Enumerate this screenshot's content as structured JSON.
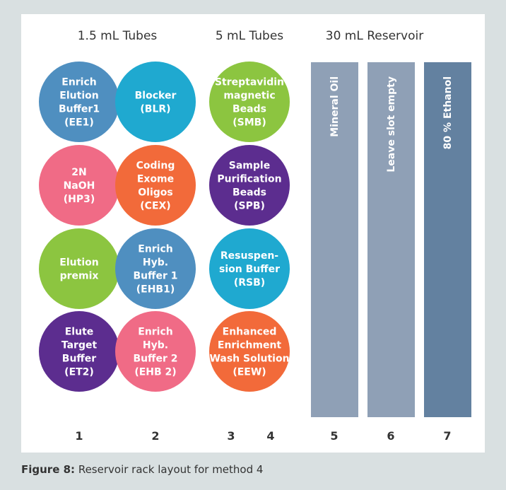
{
  "headers": [
    "1.5 mL Tubes",
    "5 mL Tubes",
    "30 mL Reservoir"
  ],
  "tubes": [
    {
      "lines": [
        "Enrich",
        "Elution",
        "Buffer1",
        "(EE1)"
      ],
      "color": "#4f8fc0"
    },
    {
      "lines": [
        "2N",
        "NaOH",
        "(HP3)"
      ],
      "color": "#f06b86"
    },
    {
      "lines": [
        "Elution",
        "premix"
      ],
      "color": "#8cc540"
    },
    {
      "lines": [
        "Elute",
        "Target",
        "Buffer",
        "(ET2)"
      ],
      "color": "#5c2d8f"
    },
    {
      "lines": [
        "Blocker",
        "(BLR)"
      ],
      "color": "#1fa9d0"
    },
    {
      "lines": [
        "Coding",
        "Exome",
        "Oligos",
        "(CEX)"
      ],
      "color": "#f26a3a"
    },
    {
      "lines": [
        "Enrich",
        "Hyb.",
        "Buffer 1",
        "(EHB1)"
      ],
      "color": "#4f8fc0"
    },
    {
      "lines": [
        "Enrich",
        "Hyb.",
        "Buffer 2",
        "(EHB 2)"
      ],
      "color": "#f06b86"
    },
    {
      "lines": [
        "Streptavidin",
        "magnetic",
        "Beads",
        "(SMB)"
      ],
      "color": "#8cc540"
    },
    {
      "lines": [
        "Sample",
        "Purification",
        "Beads",
        "(SPB)"
      ],
      "color": "#5c2d8f"
    },
    {
      "lines": [
        "Resuspen-",
        "sion Buffer",
        "(RSB)"
      ],
      "color": "#1fa9d0"
    },
    {
      "lines": [
        "Enhanced",
        "Enrichment",
        "Wash Solution",
        "(EEW)"
      ],
      "color": "#f26a3a"
    }
  ],
  "reservoirs": [
    {
      "label": "Mineral Oil",
      "color": "#8fa0b6"
    },
    {
      "label": "Leave slot empty",
      "color": "#8fa0b6"
    },
    {
      "label": "80 % Ethanol",
      "color": "#6381a0"
    }
  ],
  "positions": [
    "1",
    "2",
    "3",
    "4",
    "5",
    "6",
    "7"
  ],
  "caption": {
    "label": "Figure 8:",
    "text": "Reservoir rack layout for method 4"
  }
}
